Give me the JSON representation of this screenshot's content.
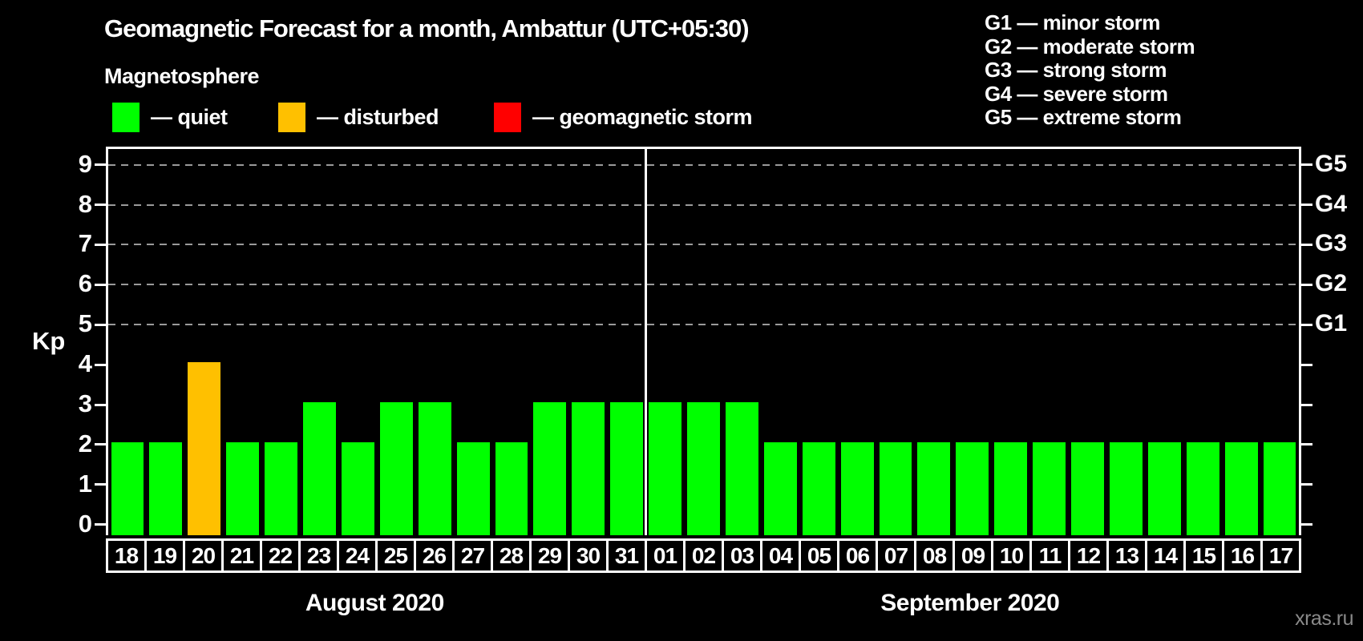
{
  "title": "Geomagnetic Forecast for a month, Ambattur (UTC+05:30)",
  "subtitle": "Magnetosphere",
  "legend": {
    "items": [
      {
        "label": "— quiet",
        "state": "quiet",
        "color": "#00ff00"
      },
      {
        "label": "— disturbed",
        "state": "disturbed",
        "color": "#ffc000"
      },
      {
        "label": "— geomagnetic storm",
        "state": "storm",
        "color": "#ff0000"
      }
    ]
  },
  "g_legend": [
    "G1 — minor storm",
    "G2 — moderate storm",
    "G3 — strong storm",
    "G4 — severe storm",
    "G5 — extreme storm"
  ],
  "watermark": "xras.ru",
  "chart_data": {
    "type": "bar",
    "ylabel": "Kp",
    "ylim": [
      0,
      9
    ],
    "y_ticks": [
      0,
      1,
      2,
      3,
      4,
      5,
      6,
      7,
      8,
      9
    ],
    "gridlines_at": [
      5,
      6,
      7,
      8,
      9
    ],
    "grid": "dashed horizontal lines at storm levels only",
    "right_axis": [
      {
        "label": "G1",
        "kp": 5
      },
      {
        "label": "G2",
        "kp": 6
      },
      {
        "label": "G3",
        "kp": 7
      },
      {
        "label": "G4",
        "kp": 8
      },
      {
        "label": "G5",
        "kp": 9
      }
    ],
    "state_colors": {
      "quiet": "#00ff00",
      "disturbed": "#ffc000",
      "storm": "#ff0000"
    },
    "months": [
      {
        "label": "August 2020",
        "days": [
          {
            "date": "18",
            "kp": 2,
            "state": "quiet"
          },
          {
            "date": "19",
            "kp": 2,
            "state": "quiet"
          },
          {
            "date": "20",
            "kp": 4,
            "state": "disturbed"
          },
          {
            "date": "21",
            "kp": 2,
            "state": "quiet"
          },
          {
            "date": "22",
            "kp": 2,
            "state": "quiet"
          },
          {
            "date": "23",
            "kp": 3,
            "state": "quiet"
          },
          {
            "date": "24",
            "kp": 2,
            "state": "quiet"
          },
          {
            "date": "25",
            "kp": 3,
            "state": "quiet"
          },
          {
            "date": "26",
            "kp": 3,
            "state": "quiet"
          },
          {
            "date": "27",
            "kp": 2,
            "state": "quiet"
          },
          {
            "date": "28",
            "kp": 2,
            "state": "quiet"
          },
          {
            "date": "29",
            "kp": 3,
            "state": "quiet"
          },
          {
            "date": "30",
            "kp": 3,
            "state": "quiet"
          },
          {
            "date": "31",
            "kp": 3,
            "state": "quiet"
          }
        ]
      },
      {
        "label": "September 2020",
        "days": [
          {
            "date": "01",
            "kp": 3,
            "state": "quiet"
          },
          {
            "date": "02",
            "kp": 3,
            "state": "quiet"
          },
          {
            "date": "03",
            "kp": 3,
            "state": "quiet"
          },
          {
            "date": "04",
            "kp": 2,
            "state": "quiet"
          },
          {
            "date": "05",
            "kp": 2,
            "state": "quiet"
          },
          {
            "date": "06",
            "kp": 2,
            "state": "quiet"
          },
          {
            "date": "07",
            "kp": 2,
            "state": "quiet"
          },
          {
            "date": "08",
            "kp": 2,
            "state": "quiet"
          },
          {
            "date": "09",
            "kp": 2,
            "state": "quiet"
          },
          {
            "date": "10",
            "kp": 2,
            "state": "quiet"
          },
          {
            "date": "11",
            "kp": 2,
            "state": "quiet"
          },
          {
            "date": "12",
            "kp": 2,
            "state": "quiet"
          },
          {
            "date": "13",
            "kp": 2,
            "state": "quiet"
          },
          {
            "date": "14",
            "kp": 2,
            "state": "quiet"
          },
          {
            "date": "15",
            "kp": 2,
            "state": "quiet"
          },
          {
            "date": "16",
            "kp": 2,
            "state": "quiet"
          },
          {
            "date": "17",
            "kp": 2,
            "state": "quiet"
          }
        ]
      }
    ]
  }
}
